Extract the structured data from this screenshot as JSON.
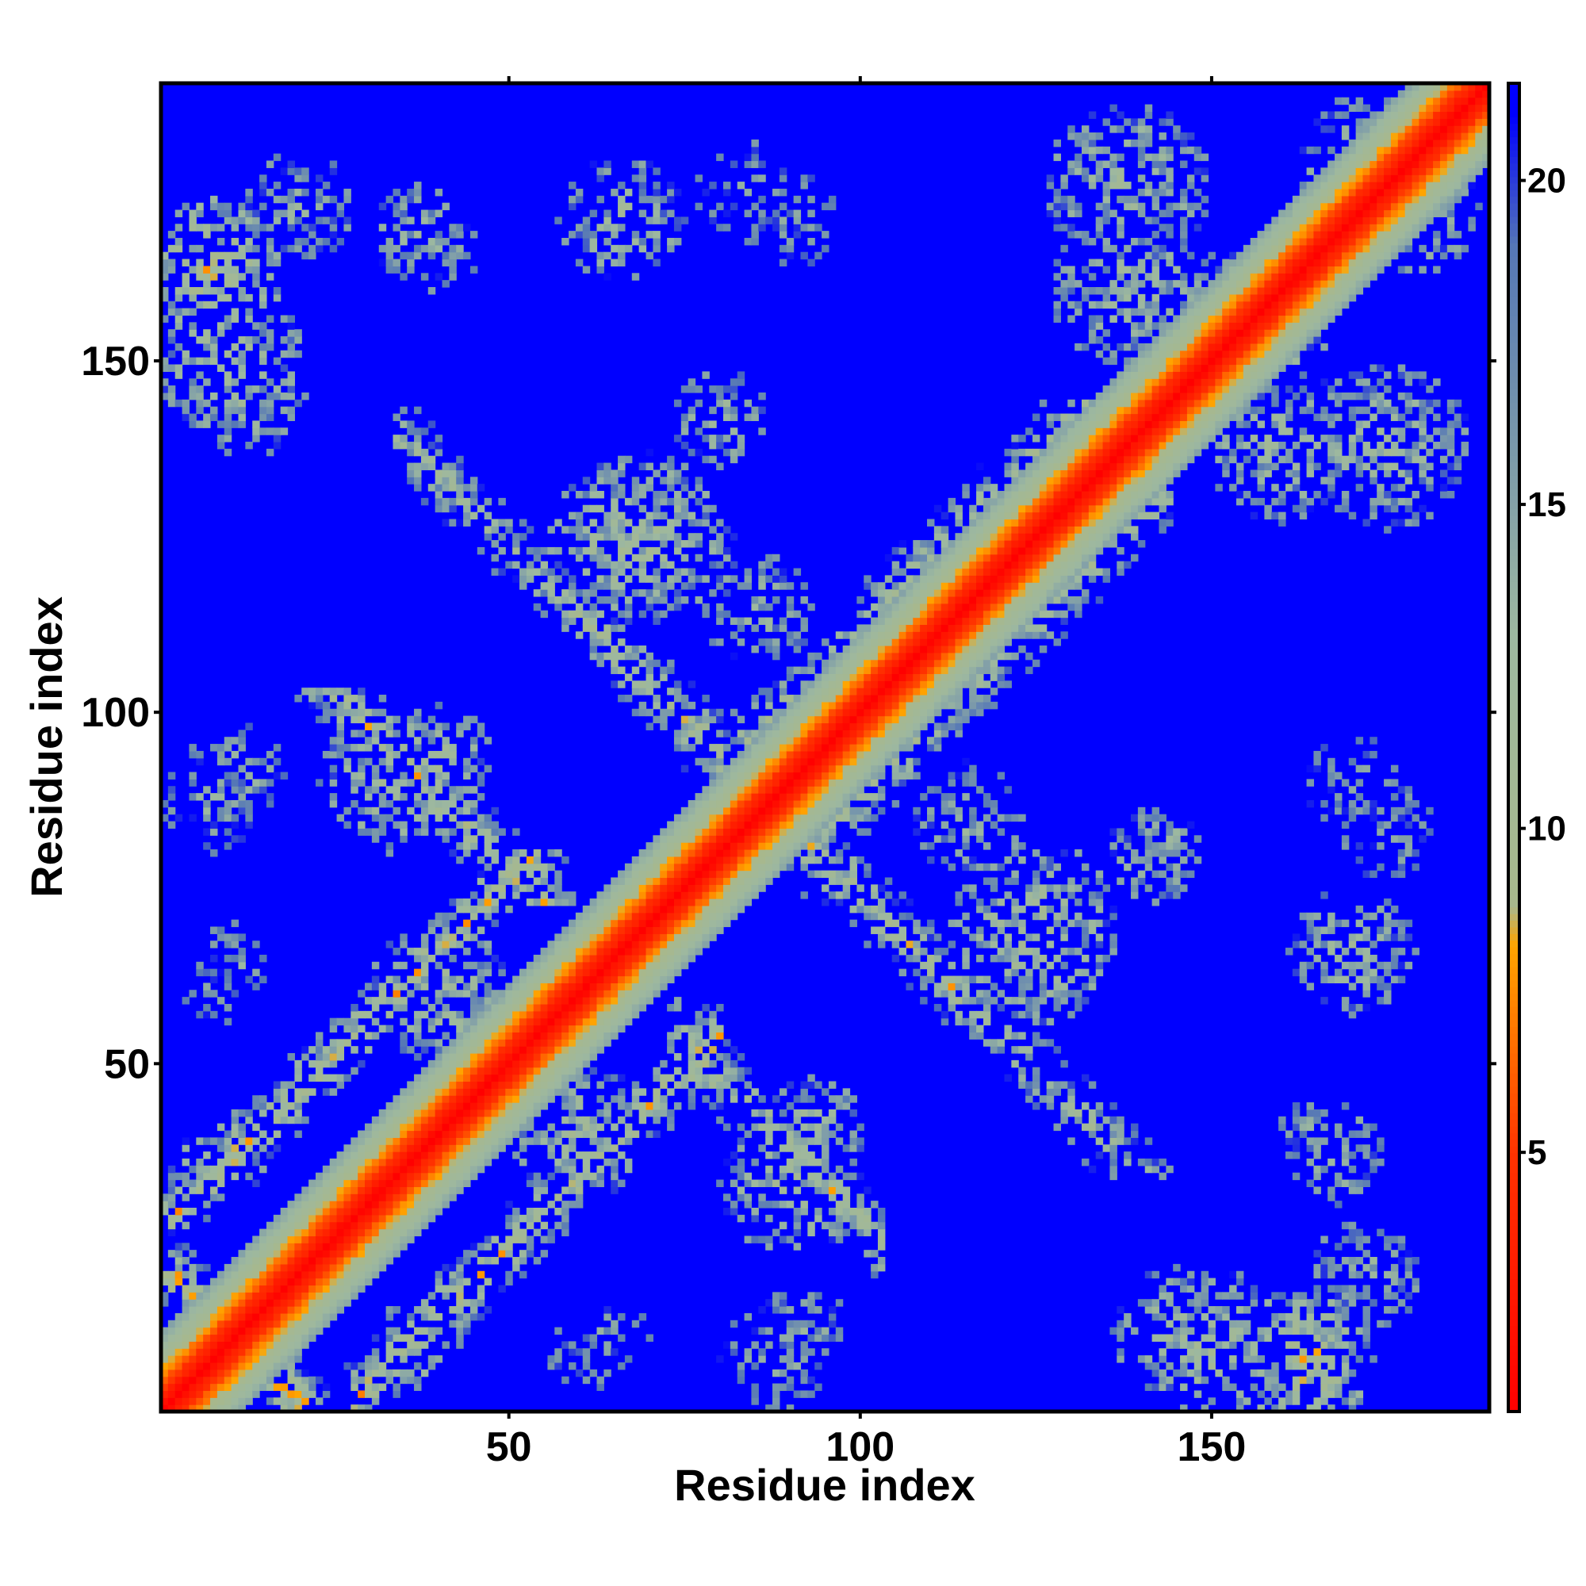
{
  "chart_data": {
    "type": "heatmap",
    "title": "",
    "xlabel": "Residue index",
    "ylabel": "Residue index",
    "n_residues": 189,
    "xlim": [
      1,
      189
    ],
    "ylim": [
      1,
      189
    ],
    "x_ticks": [
      50,
      100,
      150
    ],
    "y_ticks": [
      50,
      100,
      150
    ],
    "colorbar": {
      "ticks": [
        5,
        10,
        15,
        20
      ],
      "range": [
        1,
        21.5
      ],
      "colors": [
        {
          "value": 1.0,
          "color": "#ff0000"
        },
        {
          "value": 5.0,
          "color": "#ff3300"
        },
        {
          "value": 8.2,
          "color": "#ffa500"
        },
        {
          "value": 8.8,
          "color": "#a8b88c"
        },
        {
          "value": 13.0,
          "color": "#9db8a0"
        },
        {
          "value": 19.0,
          "color": "#5577b6"
        },
        {
          "value": 21.0,
          "color": "#0000ff"
        }
      ]
    },
    "background_color": "#0000ff",
    "grid": false,
    "legend": "right colorbar",
    "contact_bands": [
      {
        "type": "parallel",
        "offset": 26,
        "from": 1,
        "to": 54,
        "strength": 0.75
      },
      {
        "type": "parallel",
        "offset": 12,
        "from": 80,
        "to": 132,
        "strength": 0.6
      },
      {
        "type": "antiparallel",
        "sum": 22,
        "from": 2,
        "to": 20,
        "strength": 0.85
      },
      {
        "type": "antiparallel",
        "sum": 128,
        "from": 25,
        "to": 55,
        "strength": 0.7
      },
      {
        "type": "antiparallel",
        "sum": 174,
        "from": 60,
        "to": 112,
        "strength": 0.7
      },
      {
        "type": "antiparallel",
        "sum": 174,
        "from": 113,
        "to": 140,
        "strength": 0.55
      }
    ],
    "contact_blobs": [
      {
        "i": 8,
        "j": 163,
        "radius": 10,
        "strength": 0.8
      },
      {
        "i": 12,
        "j": 145,
        "radius": 9,
        "strength": 0.55
      },
      {
        "i": 37,
        "j": 168,
        "radius": 7,
        "strength": 0.5
      },
      {
        "i": 66,
        "j": 170,
        "radius": 9,
        "strength": 0.55
      },
      {
        "i": 83,
        "j": 175,
        "radius": 7,
        "strength": 0.35
      },
      {
        "i": 67,
        "j": 124,
        "radius": 12,
        "strength": 0.65
      },
      {
        "i": 80,
        "j": 142,
        "radius": 7,
        "strength": 0.5
      },
      {
        "i": 40,
        "j": 93,
        "radius": 8,
        "strength": 0.6
      },
      {
        "i": 13,
        "j": 92,
        "radius": 6,
        "strength": 0.45
      },
      {
        "i": 11,
        "j": 65,
        "radius": 5,
        "strength": 0.4
      },
      {
        "i": 35,
        "j": 7,
        "radius": 5,
        "strength": 0.55
      },
      {
        "i": 12,
        "j": 38,
        "radius": 6,
        "strength": 0.5
      },
      {
        "i": 60,
        "j": 40,
        "radius": 10,
        "strength": 0.6
      },
      {
        "i": 90,
        "j": 33,
        "radius": 10,
        "strength": 0.6
      },
      {
        "i": 88,
        "j": 8,
        "radius": 8,
        "strength": 0.4
      },
      {
        "i": 60,
        "j": 8,
        "radius": 5,
        "strength": 0.3
      },
      {
        "i": 125,
        "j": 70,
        "radius": 12,
        "strength": 0.6
      },
      {
        "i": 115,
        "j": 85,
        "radius": 8,
        "strength": 0.45
      },
      {
        "i": 150,
        "j": 10,
        "radius": 11,
        "strength": 0.6
      },
      {
        "i": 162,
        "j": 8,
        "radius": 7,
        "strength": 0.6
      },
      {
        "i": 172,
        "j": 20,
        "radius": 8,
        "strength": 0.45
      },
      {
        "i": 165,
        "j": 40,
        "radius": 6,
        "strength": 0.4
      },
      {
        "i": 167,
        "j": 65,
        "radius": 6,
        "strength": 0.4
      },
      {
        "i": 170,
        "j": 90,
        "radius": 7,
        "strength": 0.3
      },
      {
        "i": 160,
        "j": 138,
        "radius": 11,
        "strength": 0.55
      },
      {
        "i": 178,
        "j": 172,
        "radius": 10,
        "strength": 0.55
      },
      {
        "i": 138,
        "j": 175,
        "radius": 12,
        "strength": 0.55
      },
      {
        "i": 158,
        "j": 152,
        "radius": 8,
        "strength": 0.55
      }
    ]
  }
}
